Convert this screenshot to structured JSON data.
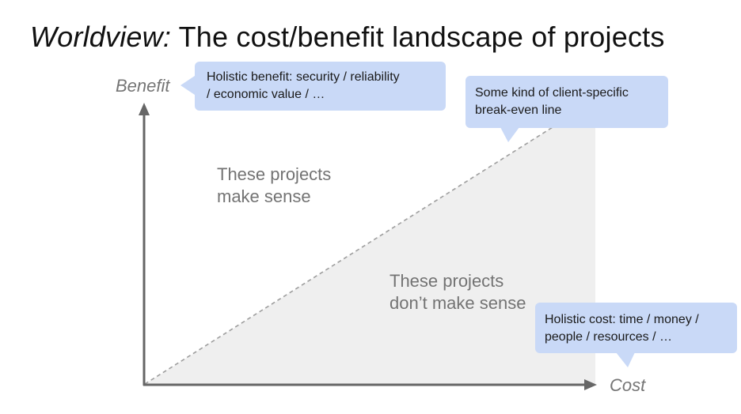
{
  "slide": {
    "title_italic": "Worldview:",
    "title_rest": " The cost/benefit landscape of projects"
  },
  "axes": {
    "y_label": "Benefit",
    "x_label": "Cost"
  },
  "regions": {
    "above_line": [
      "These projects",
      "make sense"
    ],
    "below_line": [
      "These projects",
      "don’t make sense"
    ]
  },
  "callouts": {
    "benefit": [
      "Holistic benefit: security / reliability",
      "/ economic value / …"
    ],
    "break_even": [
      "Some kind of client-specific",
      "break-even line"
    ],
    "cost": [
      "Holistic cost: time / money /",
      "people / resources / …"
    ]
  },
  "colors": {
    "bubble_fill": "#c9d9f7",
    "shaded_region": "#efefef",
    "axis": "#666666",
    "break_even_line": "#9e9e9e"
  }
}
